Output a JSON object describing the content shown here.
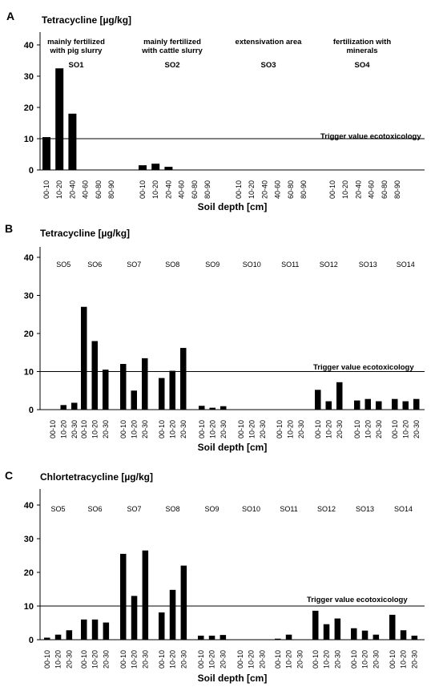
{
  "chart_data": [
    {
      "type": "bar",
      "panel": "A",
      "title": "Tetracycline [µg/kg]",
      "xlabel": "Soil depth [cm]",
      "ylabel": "",
      "ylim": [
        0,
        45
      ],
      "yticks": [
        0,
        10,
        20,
        30,
        40
      ],
      "trigger": {
        "value": 10,
        "label": "Trigger value ecotoxicology"
      },
      "groups": [
        {
          "site": "SO1",
          "desc": [
            "mainly fertilized",
            "with pig slurry"
          ],
          "categories": [
            "00-10",
            "10-20",
            "20-40",
            "40-60",
            "60-80",
            "80-90"
          ],
          "values": [
            10.5,
            32.5,
            18,
            0,
            0,
            0
          ]
        },
        {
          "site": "SO2",
          "desc": [
            "mainly fertilized",
            "with cattle slurry"
          ],
          "categories": [
            "00-10",
            "10-20",
            "20-40",
            "40-60",
            "60-80",
            "80-90"
          ],
          "values": [
            1.5,
            2,
            1,
            0,
            0,
            0
          ]
        },
        {
          "site": "SO3",
          "desc": [
            "extensivation area"
          ],
          "categories": [
            "00-10",
            "10-20",
            "20-40",
            "40-60",
            "60-80",
            "80-90"
          ],
          "values": [
            0,
            0,
            0,
            0,
            0,
            0
          ]
        },
        {
          "site": "SO4",
          "desc": [
            "fertilization with",
            "minerals"
          ],
          "categories": [
            "00-10",
            "10-20",
            "20-40",
            "40-60",
            "60-80",
            "80-90"
          ],
          "values": [
            0,
            0,
            0,
            0,
            0,
            0
          ]
        }
      ]
    },
    {
      "type": "bar",
      "panel": "B",
      "title": "Tetracycline [µg/kg]",
      "xlabel": "Soil depth [cm]",
      "ylabel": "",
      "ylim": [
        0,
        45
      ],
      "yticks": [
        0,
        10,
        20,
        30,
        40
      ],
      "trigger": {
        "value": 10,
        "label": "Trigger value ecotoxicology"
      },
      "groups": [
        {
          "site": "SO5",
          "categories": [
            "00-10",
            "10-20",
            "20-30"
          ],
          "values": [
            0,
            1.2,
            1.8
          ]
        },
        {
          "site": "SO6",
          "categories": [
            "00-10",
            "10-20",
            "20-30"
          ],
          "values": [
            27,
            18,
            10.5
          ]
        },
        {
          "site": "SO7",
          "categories": [
            "00-10",
            "10-20",
            "20-30"
          ],
          "values": [
            12,
            5,
            13.5
          ]
        },
        {
          "site": "SO8",
          "categories": [
            "00-10",
            "10-20",
            "20-30"
          ],
          "values": [
            8.3,
            10.2,
            16.2
          ]
        },
        {
          "site": "SO9",
          "categories": [
            "00-10",
            "10-20",
            "20-30"
          ],
          "values": [
            1,
            0.5,
            0.9
          ]
        },
        {
          "site": "SO10",
          "categories": [
            "00-10",
            "10-20",
            "20-30"
          ],
          "values": [
            0,
            0,
            0
          ]
        },
        {
          "site": "SO11",
          "categories": [
            "00-10",
            "10-20",
            "20-30"
          ],
          "values": [
            0,
            0,
            0
          ]
        },
        {
          "site": "SO12",
          "categories": [
            "00-10",
            "10-20",
            "20-30"
          ],
          "values": [
            5.2,
            2.2,
            7.2
          ]
        },
        {
          "site": "SO13",
          "categories": [
            "00-10",
            "10-20",
            "20-30"
          ],
          "values": [
            2.4,
            2.8,
            2.2
          ]
        },
        {
          "site": "SO14",
          "categories": [
            "00-10",
            "10-20",
            "20-30"
          ],
          "values": [
            2.8,
            2.2,
            2.8
          ]
        }
      ]
    },
    {
      "type": "bar",
      "panel": "C",
      "title": "Chlortetracycline [µg/kg]",
      "xlabel": "Soil depth [cm]",
      "ylabel": "",
      "ylim": [
        0,
        45
      ],
      "yticks": [
        0,
        10,
        20,
        30,
        40
      ],
      "trigger": {
        "value": 10,
        "label": "Trigger value ecotoxicology"
      },
      "groups": [
        {
          "site": "SO5",
          "categories": [
            "00-10",
            "10-20",
            "20-30"
          ],
          "values": [
            0.6,
            1.5,
            2.8
          ]
        },
        {
          "site": "SO6",
          "categories": [
            "00-10",
            "10-20",
            "20-30"
          ],
          "values": [
            6,
            6,
            5.1
          ]
        },
        {
          "site": "SO7",
          "categories": [
            "00-10",
            "10-20",
            "20-30"
          ],
          "values": [
            25.5,
            13,
            26.5
          ]
        },
        {
          "site": "SO8",
          "categories": [
            "00-10",
            "10-20",
            "20-30"
          ],
          "values": [
            8.1,
            14.8,
            22
          ]
        },
        {
          "site": "SO9",
          "categories": [
            "00-10",
            "10-20",
            "20-30"
          ],
          "values": [
            1.2,
            1.2,
            1.4
          ]
        },
        {
          "site": "SO10",
          "categories": [
            "00-10",
            "10-20",
            "20-30"
          ],
          "values": [
            0,
            0,
            0
          ]
        },
        {
          "site": "SO11",
          "categories": [
            "00-10",
            "10-20",
            "20-30"
          ],
          "values": [
            0.3,
            1.5,
            0
          ]
        },
        {
          "site": "SO12",
          "categories": [
            "00-10",
            "10-20",
            "20-30"
          ],
          "values": [
            8.6,
            4.6,
            6.3
          ]
        },
        {
          "site": "SO13",
          "categories": [
            "00-10",
            "10-20",
            "20-30"
          ],
          "values": [
            3.4,
            2.7,
            1.5
          ]
        },
        {
          "site": "SO14",
          "categories": [
            "00-10",
            "10-20",
            "20-30"
          ],
          "values": [
            7.4,
            2.8,
            1.2
          ]
        }
      ]
    }
  ]
}
